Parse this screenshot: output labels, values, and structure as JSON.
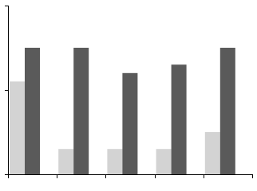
{
  "chart_data": {
    "type": "bar",
    "categories": [
      null,
      null,
      null,
      null,
      null
    ],
    "series": [
      {
        "color": "#d3d3d3",
        "values": [
          55,
          15,
          15,
          15,
          25
        ]
      },
      {
        "color": "#5a5a5a",
        "values": [
          75,
          75,
          60,
          65,
          75
        ]
      }
    ],
    "ylim": [
      0,
      100
    ],
    "yticks": [
      0,
      50,
      100
    ],
    "grid": false
  }
}
